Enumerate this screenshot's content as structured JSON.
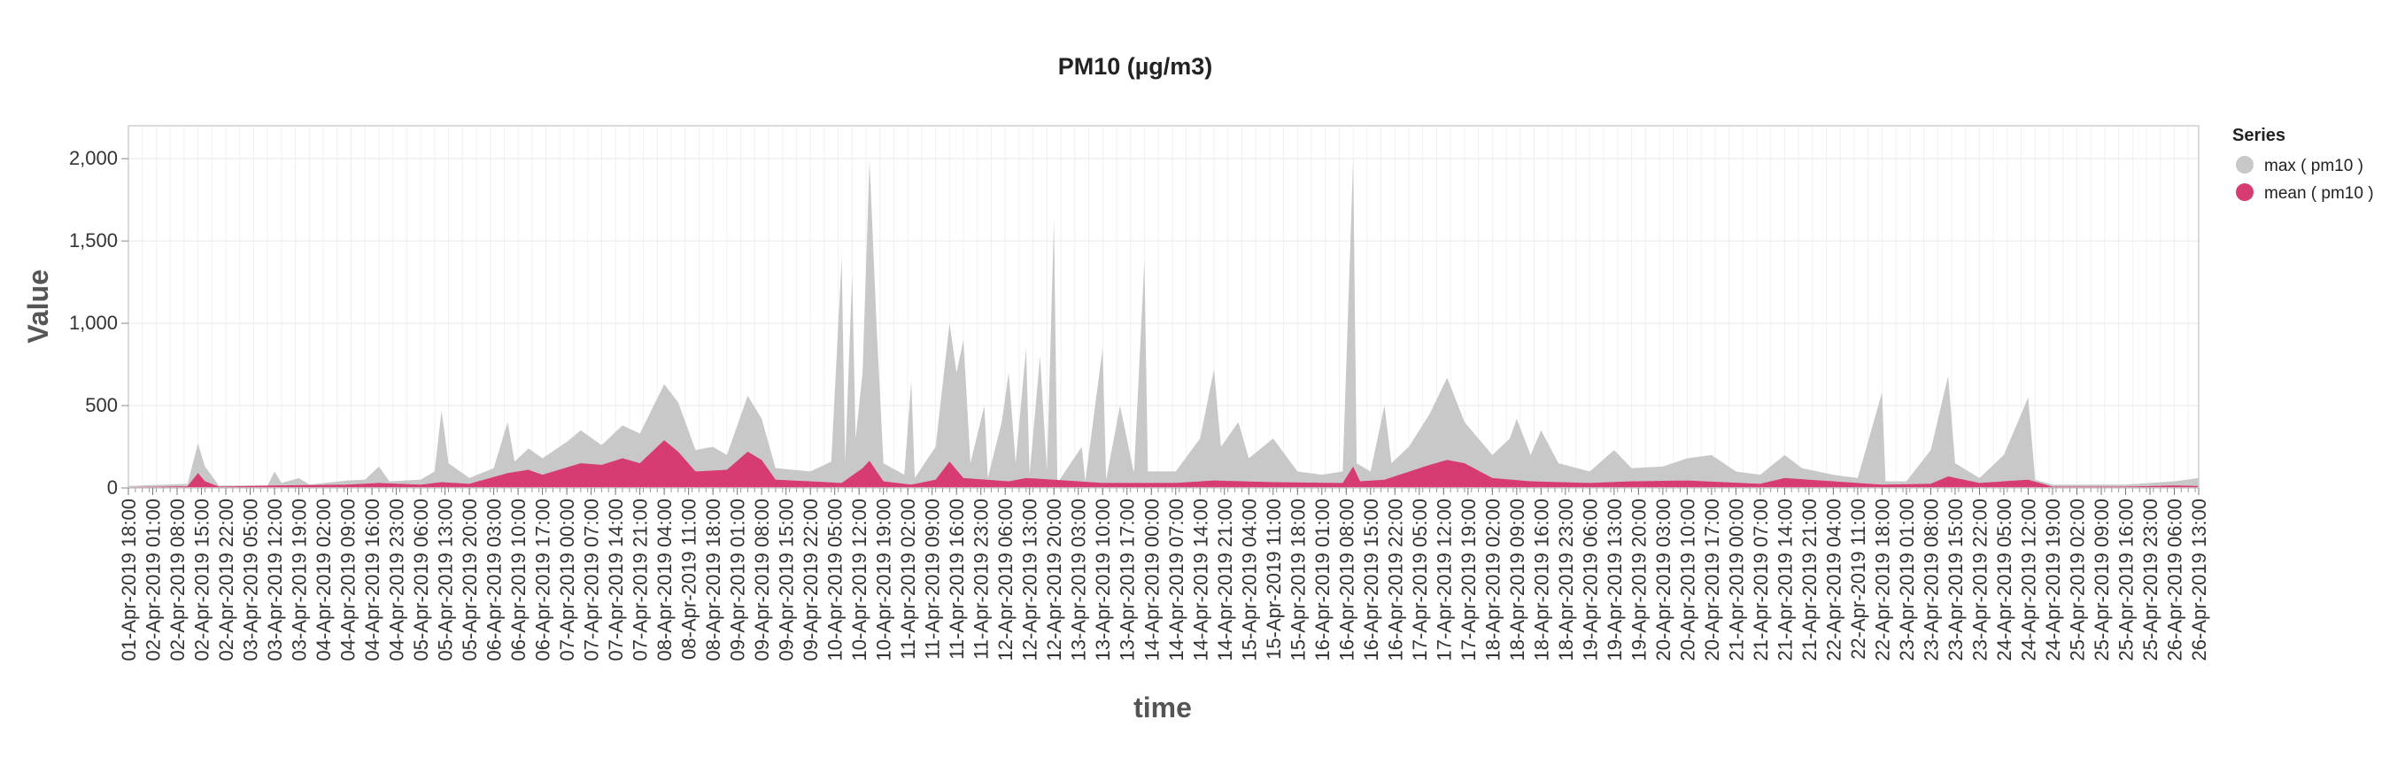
{
  "chart_data": {
    "type": "area",
    "title": "PM10 (µg/m3)",
    "xlabel": "time",
    "ylabel": "Value",
    "ylim": [
      0,
      2200
    ],
    "yticks": [
      0,
      500,
      1000,
      1500,
      2000
    ],
    "ytick_labels": [
      "0",
      "500",
      "1,000",
      "1,500",
      "2,000"
    ],
    "x_start": "01-Apr-2019 18:00",
    "x_step_hours": 1,
    "x_points": 596,
    "xtick_labels": [
      "01-Apr-2019 18:00",
      "02-Apr-2019 01:00",
      "02-Apr-2019 08:00",
      "02-Apr-2019 15:00",
      "02-Apr-2019 22:00",
      "03-Apr-2019 05:00",
      "03-Apr-2019 12:00",
      "03-Apr-2019 19:00",
      "04-Apr-2019 02:00",
      "04-Apr-2019 09:00",
      "04-Apr-2019 16:00",
      "04-Apr-2019 23:00",
      "05-Apr-2019 06:00",
      "05-Apr-2019 13:00",
      "05-Apr-2019 20:00",
      "06-Apr-2019 03:00",
      "06-Apr-2019 10:00",
      "06-Apr-2019 17:00",
      "07-Apr-2019 00:00",
      "07-Apr-2019 07:00",
      "07-Apr-2019 14:00",
      "07-Apr-2019 21:00",
      "08-Apr-2019 04:00",
      "08-Apr-2019 11:00",
      "08-Apr-2019 18:00",
      "09-Apr-2019 01:00",
      "09-Apr-2019 08:00",
      "09-Apr-2019 15:00",
      "09-Apr-2019 22:00",
      "10-Apr-2019 05:00",
      "10-Apr-2019 12:00",
      "10-Apr-2019 19:00",
      "11-Apr-2019 02:00",
      "11-Apr-2019 09:00",
      "11-Apr-2019 16:00",
      "11-Apr-2019 23:00",
      "12-Apr-2019 06:00",
      "12-Apr-2019 13:00",
      "12-Apr-2019 20:00",
      "13-Apr-2019 03:00",
      "13-Apr-2019 10:00",
      "13-Apr-2019 17:00",
      "14-Apr-2019 00:00",
      "14-Apr-2019 07:00",
      "14-Apr-2019 14:00",
      "14-Apr-2019 21:00",
      "15-Apr-2019 04:00",
      "15-Apr-2019 11:00",
      "15-Apr-2019 18:00",
      "16-Apr-2019 01:00",
      "16-Apr-2019 08:00",
      "16-Apr-2019 15:00",
      "16-Apr-2019 22:00",
      "17-Apr-2019 05:00",
      "17-Apr-2019 12:00",
      "17-Apr-2019 19:00",
      "18-Apr-2019 02:00",
      "18-Apr-2019 09:00",
      "18-Apr-2019 16:00",
      "18-Apr-2019 23:00",
      "19-Apr-2019 06:00",
      "19-Apr-2019 13:00",
      "19-Apr-2019 20:00",
      "20-Apr-2019 03:00",
      "20-Apr-2019 10:00",
      "20-Apr-2019 17:00",
      "21-Apr-2019 00:00",
      "21-Apr-2019 07:00",
      "21-Apr-2019 14:00",
      "21-Apr-2019 21:00",
      "22-Apr-2019 04:00",
      "22-Apr-2019 11:00",
      "22-Apr-2019 18:00",
      "23-Apr-2019 01:00",
      "23-Apr-2019 08:00",
      "23-Apr-2019 15:00",
      "23-Apr-2019 22:00",
      "24-Apr-2019 05:00",
      "24-Apr-2019 12:00",
      "24-Apr-2019 19:00",
      "25-Apr-2019 02:00",
      "25-Apr-2019 09:00",
      "25-Apr-2019 16:00",
      "25-Apr-2019 23:00",
      "26-Apr-2019 06:00",
      "26-Apr-2019 13:00"
    ],
    "grid": true,
    "legend": {
      "title": "Series",
      "position": "right"
    },
    "series": [
      {
        "name": "max ( pm10 )",
        "color": "#c8c8c8",
        "keypoints": [
          [
            "01-Apr-2019 18:00",
            12
          ],
          [
            "02-Apr-2019 11:00",
            25
          ],
          [
            "02-Apr-2019 14:00",
            270
          ],
          [
            "02-Apr-2019 16:00",
            130
          ],
          [
            "02-Apr-2019 20:00",
            15
          ],
          [
            "03-Apr-2019 10:00",
            15
          ],
          [
            "03-Apr-2019 12:00",
            100
          ],
          [
            "03-Apr-2019 14:00",
            30
          ],
          [
            "03-Apr-2019 19:00",
            60
          ],
          [
            "03-Apr-2019 22:00",
            20
          ],
          [
            "04-Apr-2019 09:00",
            45
          ],
          [
            "04-Apr-2019 14:00",
            50
          ],
          [
            "04-Apr-2019 18:00",
            130
          ],
          [
            "04-Apr-2019 21:00",
            40
          ],
          [
            "05-Apr-2019 06:00",
            50
          ],
          [
            "05-Apr-2019 10:00",
            100
          ],
          [
            "05-Apr-2019 12:00",
            470
          ],
          [
            "05-Apr-2019 14:00",
            150
          ],
          [
            "05-Apr-2019 20:00",
            60
          ],
          [
            "06-Apr-2019 03:00",
            120
          ],
          [
            "06-Apr-2019 07:00",
            400
          ],
          [
            "06-Apr-2019 09:00",
            160
          ],
          [
            "06-Apr-2019 13:00",
            240
          ],
          [
            "06-Apr-2019 17:00",
            180
          ],
          [
            "07-Apr-2019 00:00",
            280
          ],
          [
            "07-Apr-2019 04:00",
            350
          ],
          [
            "07-Apr-2019 10:00",
            260
          ],
          [
            "07-Apr-2019 16:00",
            380
          ],
          [
            "07-Apr-2019 21:00",
            330
          ],
          [
            "08-Apr-2019 04:00",
            630
          ],
          [
            "08-Apr-2019 08:00",
            520
          ],
          [
            "08-Apr-2019 13:00",
            230
          ],
          [
            "08-Apr-2019 18:00",
            250
          ],
          [
            "08-Apr-2019 22:00",
            200
          ],
          [
            "09-Apr-2019 04:00",
            560
          ],
          [
            "09-Apr-2019 08:00",
            420
          ],
          [
            "09-Apr-2019 12:00",
            120
          ],
          [
            "09-Apr-2019 22:00",
            100
          ],
          [
            "10-Apr-2019 04:00",
            160
          ],
          [
            "10-Apr-2019 07:00",
            1400
          ],
          [
            "10-Apr-2019 08:00",
            150
          ],
          [
            "10-Apr-2019 10:00",
            1300
          ],
          [
            "10-Apr-2019 11:00",
            300
          ],
          [
            "10-Apr-2019 13:00",
            700
          ],
          [
            "10-Apr-2019 15:00",
            1990
          ],
          [
            "10-Apr-2019 17:00",
            1000
          ],
          [
            "10-Apr-2019 19:00",
            150
          ],
          [
            "11-Apr-2019 01:00",
            80
          ],
          [
            "11-Apr-2019 03:00",
            650
          ],
          [
            "11-Apr-2019 04:00",
            60
          ],
          [
            "11-Apr-2019 10:00",
            250
          ],
          [
            "11-Apr-2019 14:00",
            1000
          ],
          [
            "11-Apr-2019 16:00",
            700
          ],
          [
            "11-Apr-2019 18:00",
            900
          ],
          [
            "11-Apr-2019 20:00",
            150
          ],
          [
            "12-Apr-2019 00:00",
            500
          ],
          [
            "12-Apr-2019 01:00",
            60
          ],
          [
            "12-Apr-2019 05:00",
            400
          ],
          [
            "12-Apr-2019 07:00",
            700
          ],
          [
            "12-Apr-2019 09:00",
            150
          ],
          [
            "12-Apr-2019 12:00",
            850
          ],
          [
            "12-Apr-2019 13:00",
            80
          ],
          [
            "12-Apr-2019 16:00",
            800
          ],
          [
            "12-Apr-2019 18:00",
            100
          ],
          [
            "12-Apr-2019 20:00",
            1630
          ],
          [
            "12-Apr-2019 21:00",
            30
          ],
          [
            "13-Apr-2019 04:00",
            250
          ],
          [
            "13-Apr-2019 05:00",
            40
          ],
          [
            "13-Apr-2019 10:00",
            850
          ],
          [
            "13-Apr-2019 11:00",
            50
          ],
          [
            "13-Apr-2019 15:00",
            500
          ],
          [
            "13-Apr-2019 19:00",
            90
          ],
          [
            "13-Apr-2019 22:00",
            1380
          ],
          [
            "13-Apr-2019 23:00",
            100
          ],
          [
            "14-Apr-2019 07:00",
            100
          ],
          [
            "14-Apr-2019 14:00",
            300
          ],
          [
            "14-Apr-2019 18:00",
            720
          ],
          [
            "14-Apr-2019 20:00",
            250
          ],
          [
            "15-Apr-2019 01:00",
            400
          ],
          [
            "15-Apr-2019 04:00",
            180
          ],
          [
            "15-Apr-2019 11:00",
            300
          ],
          [
            "15-Apr-2019 18:00",
            100
          ],
          [
            "16-Apr-2019 01:00",
            80
          ],
          [
            "16-Apr-2019 07:00",
            100
          ],
          [
            "16-Apr-2019 10:00",
            2000
          ],
          [
            "16-Apr-2019 11:00",
            150
          ],
          [
            "16-Apr-2019 15:00",
            100
          ],
          [
            "16-Apr-2019 19:00",
            500
          ],
          [
            "16-Apr-2019 21:00",
            150
          ],
          [
            "17-Apr-2019 02:00",
            250
          ],
          [
            "17-Apr-2019 08:00",
            450
          ],
          [
            "17-Apr-2019 13:00",
            670
          ],
          [
            "17-Apr-2019 18:00",
            400
          ],
          [
            "18-Apr-2019 02:00",
            200
          ],
          [
            "18-Apr-2019 07:00",
            300
          ],
          [
            "18-Apr-2019 09:00",
            420
          ],
          [
            "18-Apr-2019 13:00",
            200
          ],
          [
            "18-Apr-2019 16:00",
            350
          ],
          [
            "18-Apr-2019 21:00",
            150
          ],
          [
            "19-Apr-2019 06:00",
            100
          ],
          [
            "19-Apr-2019 13:00",
            230
          ],
          [
            "19-Apr-2019 18:00",
            120
          ],
          [
            "20-Apr-2019 03:00",
            130
          ],
          [
            "20-Apr-2019 10:00",
            180
          ],
          [
            "20-Apr-2019 17:00",
            200
          ],
          [
            "21-Apr-2019 00:00",
            100
          ],
          [
            "21-Apr-2019 07:00",
            80
          ],
          [
            "21-Apr-2019 14:00",
            200
          ],
          [
            "21-Apr-2019 19:00",
            120
          ],
          [
            "22-Apr-2019 04:00",
            80
          ],
          [
            "22-Apr-2019 11:00",
            60
          ],
          [
            "22-Apr-2019 18:00",
            580
          ],
          [
            "22-Apr-2019 19:00",
            40
          ],
          [
            "23-Apr-2019 01:00",
            40
          ],
          [
            "23-Apr-2019 08:00",
            230
          ],
          [
            "23-Apr-2019 13:00",
            680
          ],
          [
            "23-Apr-2019 15:00",
            150
          ],
          [
            "23-Apr-2019 22:00",
            60
          ],
          [
            "24-Apr-2019 05:00",
            200
          ],
          [
            "24-Apr-2019 12:00",
            550
          ],
          [
            "24-Apr-2019 14:00",
            50
          ],
          [
            "24-Apr-2019 19:00",
            20
          ],
          [
            "25-Apr-2019 16:00",
            20
          ],
          [
            "26-Apr-2019 06:00",
            40
          ],
          [
            "26-Apr-2019 13:00",
            60
          ],
          [
            "26-Apr-2019 17:00",
            20
          ]
        ]
      },
      {
        "name": "mean ( pm10 )",
        "color": "#d63c72",
        "keypoints": [
          [
            "01-Apr-2019 18:00",
            5
          ],
          [
            "02-Apr-2019 11:00",
            10
          ],
          [
            "02-Apr-2019 14:00",
            90
          ],
          [
            "02-Apr-2019 16:00",
            40
          ],
          [
            "02-Apr-2019 20:00",
            8
          ],
          [
            "03-Apr-2019 12:00",
            15
          ],
          [
            "04-Apr-2019 09:00",
            20
          ],
          [
            "04-Apr-2019 18:00",
            30
          ],
          [
            "05-Apr-2019 06:00",
            20
          ],
          [
            "05-Apr-2019 12:00",
            35
          ],
          [
            "05-Apr-2019 20:00",
            25
          ],
          [
            "06-Apr-2019 07:00",
            90
          ],
          [
            "06-Apr-2019 13:00",
            110
          ],
          [
            "06-Apr-2019 17:00",
            80
          ],
          [
            "07-Apr-2019 04:00",
            150
          ],
          [
            "07-Apr-2019 10:00",
            140
          ],
          [
            "07-Apr-2019 16:00",
            180
          ],
          [
            "07-Apr-2019 21:00",
            150
          ],
          [
            "08-Apr-2019 04:00",
            290
          ],
          [
            "08-Apr-2019 08:00",
            220
          ],
          [
            "08-Apr-2019 13:00",
            100
          ],
          [
            "08-Apr-2019 22:00",
            110
          ],
          [
            "09-Apr-2019 04:00",
            220
          ],
          [
            "09-Apr-2019 08:00",
            170
          ],
          [
            "09-Apr-2019 12:00",
            50
          ],
          [
            "09-Apr-2019 22:00",
            40
          ],
          [
            "10-Apr-2019 07:00",
            30
          ],
          [
            "10-Apr-2019 13:00",
            120
          ],
          [
            "10-Apr-2019 15:00",
            165
          ],
          [
            "10-Apr-2019 19:00",
            40
          ],
          [
            "11-Apr-2019 03:00",
            20
          ],
          [
            "11-Apr-2019 10:00",
            50
          ],
          [
            "11-Apr-2019 14:00",
            160
          ],
          [
            "11-Apr-2019 18:00",
            60
          ],
          [
            "12-Apr-2019 07:00",
            40
          ],
          [
            "12-Apr-2019 12:00",
            60
          ],
          [
            "12-Apr-2019 20:00",
            50
          ],
          [
            "13-Apr-2019 10:00",
            30
          ],
          [
            "14-Apr-2019 07:00",
            30
          ],
          [
            "14-Apr-2019 18:00",
            45
          ],
          [
            "15-Apr-2019 11:00",
            35
          ],
          [
            "16-Apr-2019 07:00",
            30
          ],
          [
            "16-Apr-2019 10:00",
            130
          ],
          [
            "16-Apr-2019 12:00",
            40
          ],
          [
            "16-Apr-2019 19:00",
            50
          ],
          [
            "17-Apr-2019 08:00",
            140
          ],
          [
            "17-Apr-2019 13:00",
            170
          ],
          [
            "17-Apr-2019 18:00",
            150
          ],
          [
            "18-Apr-2019 02:00",
            60
          ],
          [
            "18-Apr-2019 13:00",
            40
          ],
          [
            "19-Apr-2019 06:00",
            30
          ],
          [
            "19-Apr-2019 18:00",
            40
          ],
          [
            "20-Apr-2019 10:00",
            45
          ],
          [
            "21-Apr-2019 07:00",
            25
          ],
          [
            "21-Apr-2019 14:00",
            60
          ],
          [
            "22-Apr-2019 04:00",
            40
          ],
          [
            "22-Apr-2019 18:00",
            20
          ],
          [
            "23-Apr-2019 08:00",
            25
          ],
          [
            "23-Apr-2019 13:00",
            70
          ],
          [
            "23-Apr-2019 22:00",
            30
          ],
          [
            "24-Apr-2019 12:00",
            50
          ],
          [
            "24-Apr-2019 19:00",
            8
          ],
          [
            "25-Apr-2019 16:00",
            8
          ],
          [
            "26-Apr-2019 06:00",
            15
          ],
          [
            "26-Apr-2019 17:00",
            10
          ]
        ]
      }
    ]
  }
}
